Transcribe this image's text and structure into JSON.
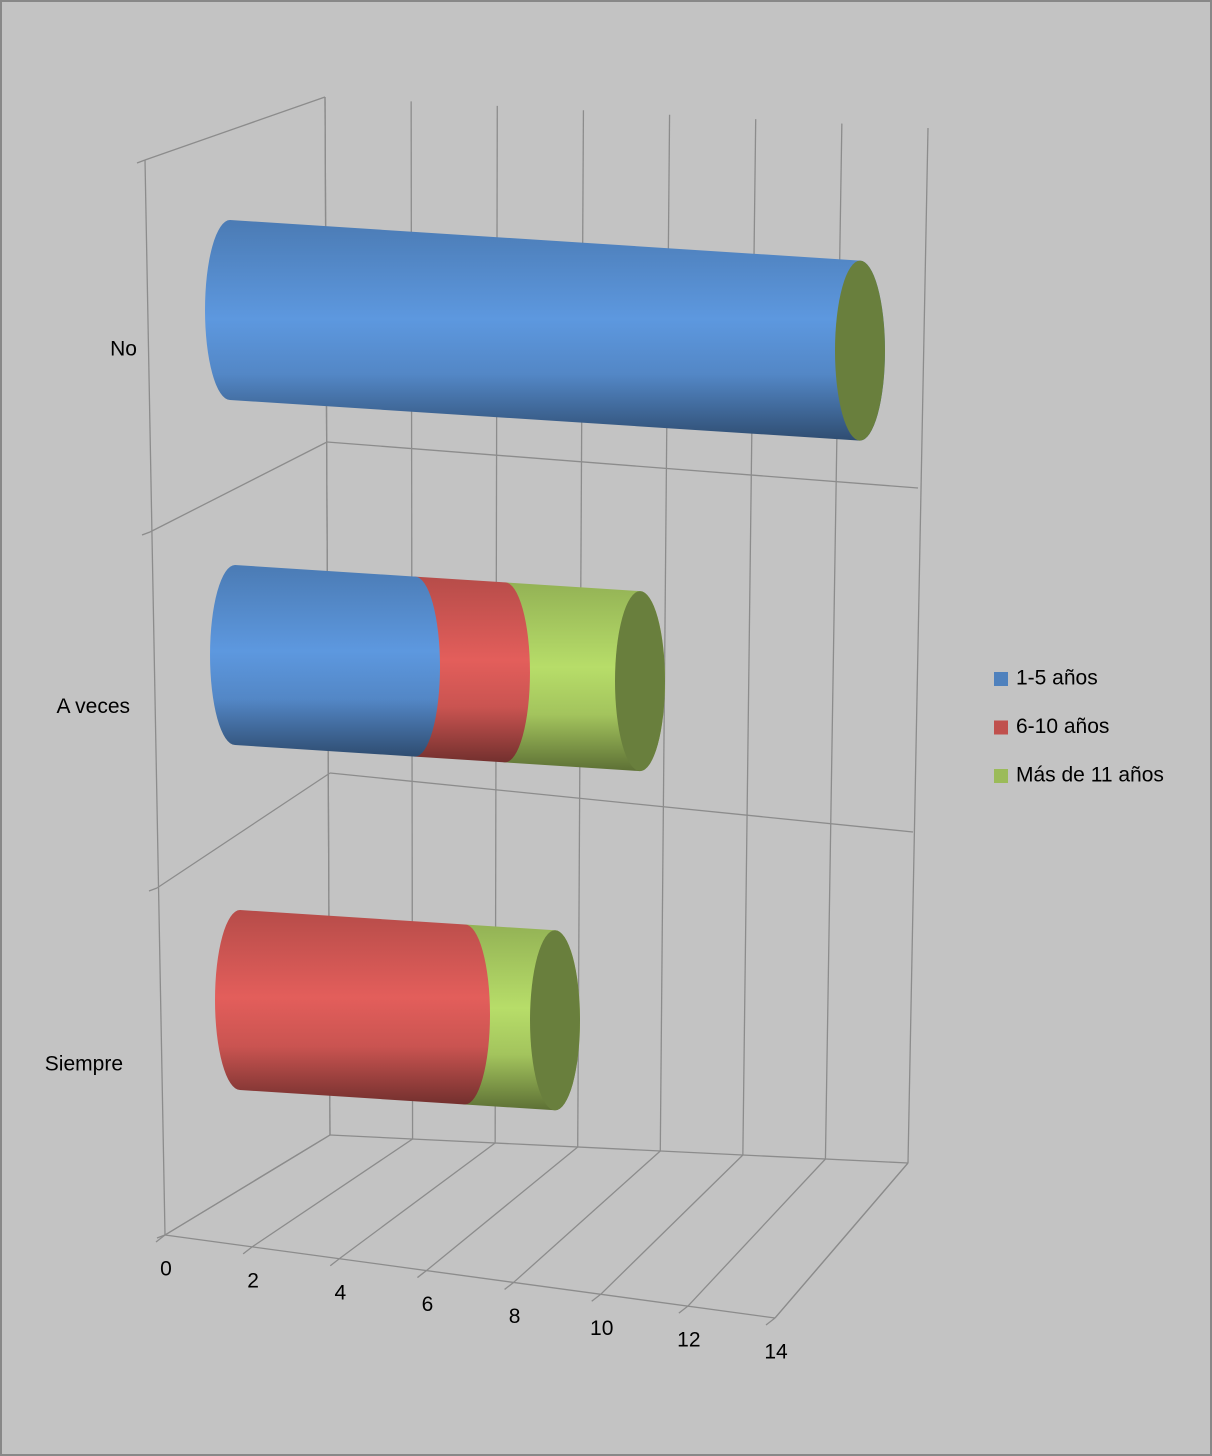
{
  "chart_data": {
    "type": "bar3d-stacked-horizontal",
    "categories": [
      "Siempre",
      "A veces",
      "No"
    ],
    "series": [
      {
        "name": "1-5 años",
        "color": "#4f81bd",
        "values": [
          0,
          4,
          14
        ]
      },
      {
        "name": "6-10 años",
        "color": "#c0504d",
        "values": [
          5,
          2,
          0
        ]
      },
      {
        "name": "Más de 11 años",
        "color": "#9bbb59",
        "values": [
          2,
          3,
          0
        ]
      }
    ],
    "xlim": [
      0,
      14
    ],
    "xticks": [
      0,
      2,
      4,
      6,
      8,
      10,
      12,
      14
    ],
    "grid": true,
    "legend": "right"
  }
}
